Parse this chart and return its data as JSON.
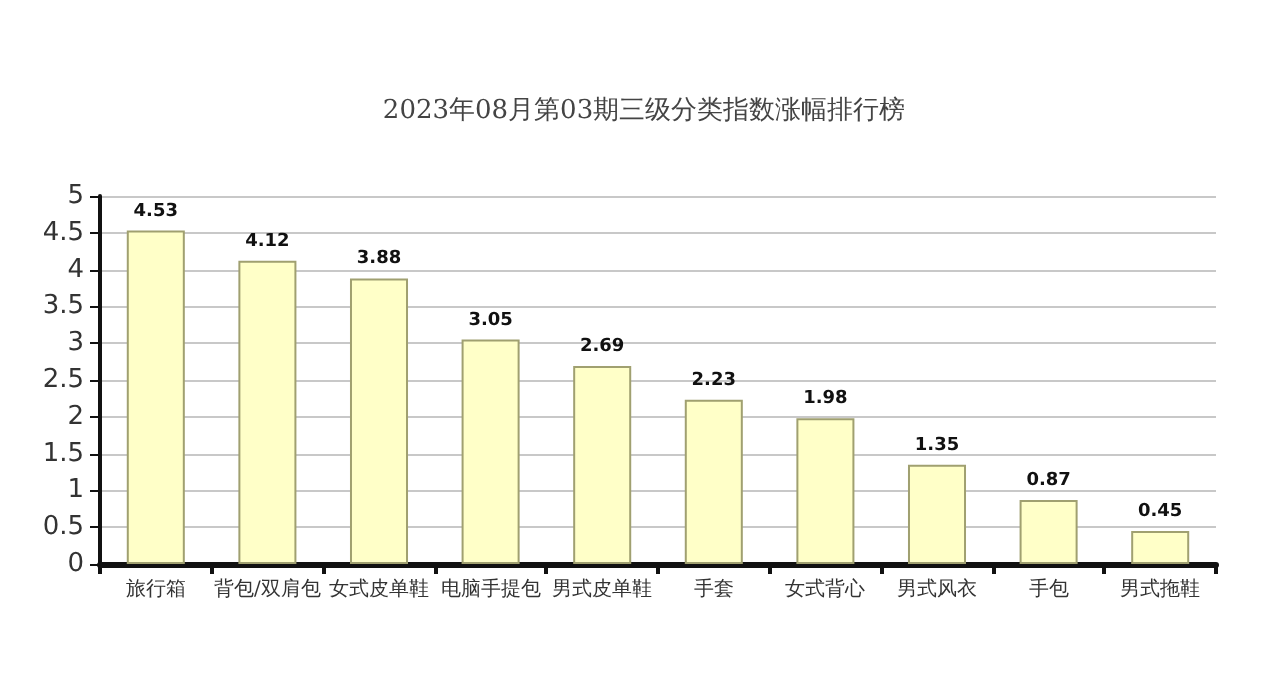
{
  "chart_data": {
    "type": "bar",
    "title": "2023年08月第03期三级分类指数涨幅排行榜",
    "categories": [
      "旅行箱",
      "背包/双肩包",
      "女式皮单鞋",
      "电脑手提包",
      "男式皮单鞋",
      "手套",
      "女式背心",
      "男式风衣",
      "手包",
      "男式拖鞋"
    ],
    "values": [
      4.53,
      4.12,
      3.88,
      3.05,
      2.69,
      2.23,
      1.98,
      1.35,
      0.87,
      0.45
    ],
    "color": "#ffffc8",
    "ylim": [
      0,
      5
    ],
    "yticks": [
      0,
      0.5,
      1,
      1.5,
      2,
      2.5,
      3,
      3.5,
      4,
      4.5,
      5
    ],
    "grid": "y",
    "data_labels": true
  }
}
